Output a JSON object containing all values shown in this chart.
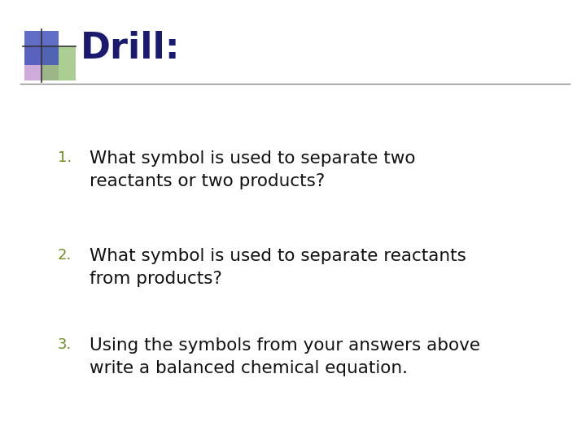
{
  "title": "Drill:",
  "title_color": "#1a1a6e",
  "title_fontsize": 32,
  "title_bold": true,
  "background_color": "#ffffff",
  "items": [
    "What symbol is used to separate two\nreactants or two products?",
    "What symbol is used to separate reactants\nfrom products?",
    "Using the symbols from your answers above\nwrite a balanced chemical equation."
  ],
  "item_fontsize": 15.5,
  "item_color": "#111111",
  "number_color": "#6b8e23",
  "number_fontsize": 13,
  "separator_line_color": "#888888",
  "logo_blue": "#4455bb",
  "logo_purple": "#bb88cc",
  "logo_green": "#88bb66",
  "line_color": "#666666"
}
